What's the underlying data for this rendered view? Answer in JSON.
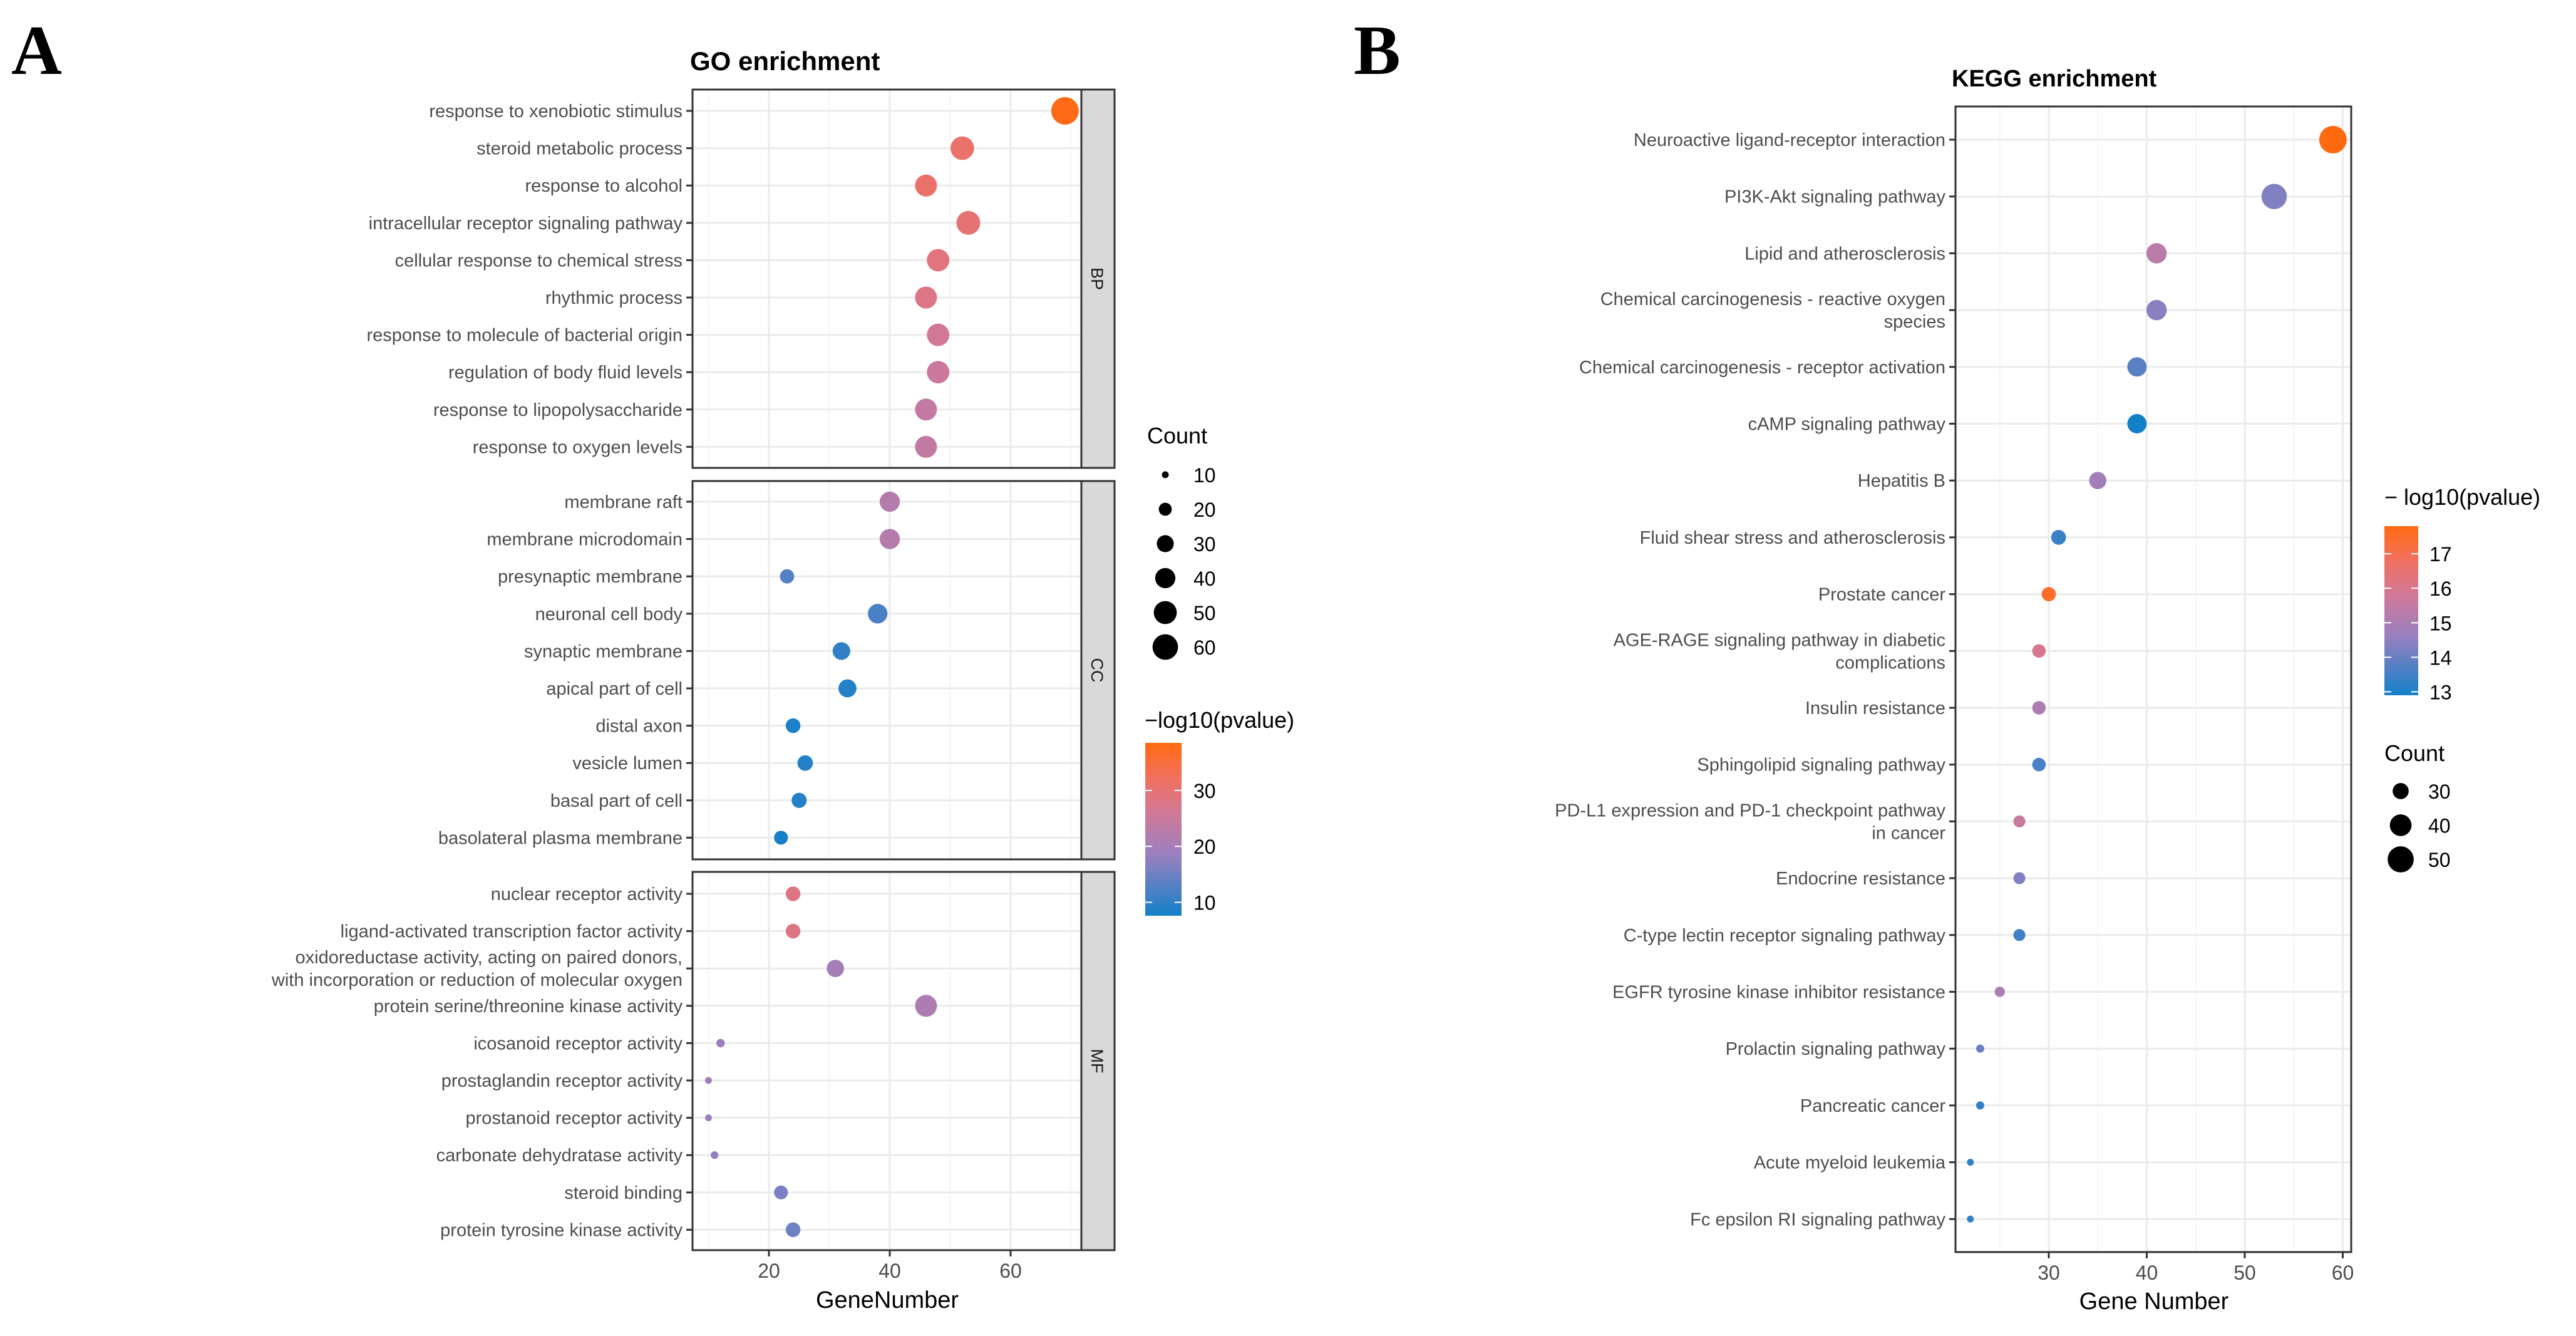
{
  "panel_letters": [
    "A",
    "B"
  ],
  "chart_data": [
    {
      "type": "scatter",
      "title": "GO enrichment",
      "xlabel": "GeneNumber",
      "ylabel": "",
      "xlim": [
        7.4,
        71.8
      ],
      "xticks": [
        20,
        40,
        60
      ],
      "grid": true,
      "facets": [
        {
          "name": "BP",
          "terms": [
            {
              "label": "response to xenobiotic stimulus",
              "gene_number": 69,
              "neg_log10_p": 38
            },
            {
              "label": "steroid metabolic process",
              "gene_number": 52,
              "neg_log10_p": 31
            },
            {
              "label": "response to alcohol",
              "gene_number": 46,
              "neg_log10_p": 31
            },
            {
              "label": "intracellular receptor signaling pathway",
              "gene_number": 53,
              "neg_log10_p": 30
            },
            {
              "label": "cellular response to chemical stress",
              "gene_number": 48,
              "neg_log10_p": 29
            },
            {
              "label": "rhythmic process",
              "gene_number": 46,
              "neg_log10_p": 28
            },
            {
              "label": "response to molecule of bacterial origin",
              "gene_number": 48,
              "neg_log10_p": 26
            },
            {
              "label": "regulation of body fluid levels",
              "gene_number": 48,
              "neg_log10_p": 25
            },
            {
              "label": "response to lipopolysaccharide",
              "gene_number": 46,
              "neg_log10_p": 24
            },
            {
              "label": "response to oxygen levels",
              "gene_number": 46,
              "neg_log10_p": 24
            }
          ]
        },
        {
          "name": "CC",
          "terms": [
            {
              "label": "membrane raft",
              "gene_number": 40,
              "neg_log10_p": 22
            },
            {
              "label": "membrane microdomain",
              "gene_number": 40,
              "neg_log10_p": 22
            },
            {
              "label": "presynaptic membrane",
              "gene_number": 23,
              "neg_log10_p": 13
            },
            {
              "label": "neuronal cell body",
              "gene_number": 38,
              "neg_log10_p": 12
            },
            {
              "label": "synaptic membrane",
              "gene_number": 32,
              "neg_log10_p": 10
            },
            {
              "label": "apical part of cell",
              "gene_number": 33,
              "neg_log10_p": 9
            },
            {
              "label": "distal axon",
              "gene_number": 24,
              "neg_log10_p": 8.5
            },
            {
              "label": "vesicle lumen",
              "gene_number": 26,
              "neg_log10_p": 9
            },
            {
              "label": "basal part of cell",
              "gene_number": 25,
              "neg_log10_p": 9
            },
            {
              "label": "basolateral plasma membrane",
              "gene_number": 22,
              "neg_log10_p": 7.8
            }
          ]
        },
        {
          "name": "MF",
          "terms": [
            {
              "label": "nuclear receptor activity",
              "gene_number": 24,
              "neg_log10_p": 28
            },
            {
              "label": "ligand-activated transcription factor activity",
              "gene_number": 24,
              "neg_log10_p": 28
            },
            {
              "label": "oxidoreductase activity, acting on paired donors,\nwith incorporation or reduction of molecular\noxygen",
              "gene_number": 31,
              "neg_log10_p": 20
            },
            {
              "label": "protein serine/threonine kinase activity",
              "gene_number": 46,
              "neg_log10_p": 21
            },
            {
              "label": "icosanoid receptor activity",
              "gene_number": 12,
              "neg_log10_p": 19
            },
            {
              "label": "prostaglandin receptor activity",
              "gene_number": 10,
              "neg_log10_p": 19
            },
            {
              "label": "prostanoid receptor activity",
              "gene_number": 10,
              "neg_log10_p": 19
            },
            {
              "label": "carbonate dehydratase activity",
              "gene_number": 11,
              "neg_log10_p": 18
            },
            {
              "label": "steroid binding",
              "gene_number": 22,
              "neg_log10_p": 16
            },
            {
              "label": "protein tyrosine kinase activity",
              "gene_number": 24,
              "neg_log10_p": 15
            }
          ]
        }
      ],
      "legend_size": {
        "title": "Count",
        "values": [
          10,
          20,
          30,
          40,
          50,
          60
        ]
      },
      "legend_color": {
        "title": "−log10(pvalue)",
        "range": [
          7.6,
          38.5
        ],
        "ticks": [
          10,
          20,
          30
        ]
      }
    },
    {
      "type": "scatter",
      "title": "KEGG enrichment",
      "xlabel": "Gene Number",
      "ylabel": "",
      "xlim": [
        20.5,
        61
      ],
      "xticks": [
        30,
        40,
        50,
        60
      ],
      "grid": true,
      "terms": [
        {
          "label": "Neuroactive ligand-receptor interaction",
          "gene_number": 59,
          "neg_log10_p": 17.8
        },
        {
          "label": "PI3K-Akt signaling pathway",
          "gene_number": 53,
          "neg_log10_p": 14.3
        },
        {
          "label": "Lipid and atherosclerosis",
          "gene_number": 41,
          "neg_log10_p": 15.3
        },
        {
          "label": "Chemical carcinogenesis - reactive oxygen\nspecies",
          "gene_number": 41,
          "neg_log10_p": 14.4
        },
        {
          "label": "Chemical carcinogenesis - receptor activation",
          "gene_number": 39,
          "neg_log10_p": 13.8
        },
        {
          "label": "cAMP signaling pathway",
          "gene_number": 39,
          "neg_log10_p": 12.9
        },
        {
          "label": "Hepatitis B",
          "gene_number": 35,
          "neg_log10_p": 14.8
        },
        {
          "label": "Fluid shear stress and atherosclerosis",
          "gene_number": 31,
          "neg_log10_p": 13.4
        },
        {
          "label": "Prostate cancer",
          "gene_number": 30,
          "neg_log10_p": 17.5
        },
        {
          "label": "AGE-RAGE signaling pathway in diabetic\ncomplications",
          "gene_number": 29,
          "neg_log10_p": 16
        },
        {
          "label": "Insulin resistance",
          "gene_number": 29,
          "neg_log10_p": 15
        },
        {
          "label": "Sphingolipid signaling pathway",
          "gene_number": 29,
          "neg_log10_p": 13.6
        },
        {
          "label": "PD-L1 expression and PD-1 checkpoint pathway\nin cancer",
          "gene_number": 27,
          "neg_log10_p": 15.6
        },
        {
          "label": "Endocrine resistance",
          "gene_number": 27,
          "neg_log10_p": 14.3
        },
        {
          "label": "C-type lectin receptor signaling pathway",
          "gene_number": 27,
          "neg_log10_p": 13.5
        },
        {
          "label": "EGFR tyrosine kinase inhibitor resistance",
          "gene_number": 25,
          "neg_log10_p": 15
        },
        {
          "label": "Prolactin signaling pathway",
          "gene_number": 23,
          "neg_log10_p": 14
        },
        {
          "label": "Pancreatic cancer",
          "gene_number": 23,
          "neg_log10_p": 13.3
        },
        {
          "label": "Acute myeloid leukemia",
          "gene_number": 22,
          "neg_log10_p": 13.2
        },
        {
          "label": "Fc epsilon RI signaling pathway",
          "gene_number": 22,
          "neg_log10_p": 13.3
        }
      ],
      "legend_color": {
        "title": "− log10(pvalue)",
        "range": [
          12.9,
          17.8
        ],
        "ticks": [
          13,
          14,
          15,
          16,
          17
        ]
      },
      "legend_size": {
        "title": "Count",
        "values": [
          30,
          40,
          50
        ]
      }
    }
  ],
  "colors": {
    "low": "#1380C8",
    "mid_low": "#9A80C0",
    "mid": "#D27896",
    "mid_high": "#F2705E",
    "high": "#FF6A10",
    "strip": "#D9D9D9",
    "grid": "#EBEBEB"
  }
}
